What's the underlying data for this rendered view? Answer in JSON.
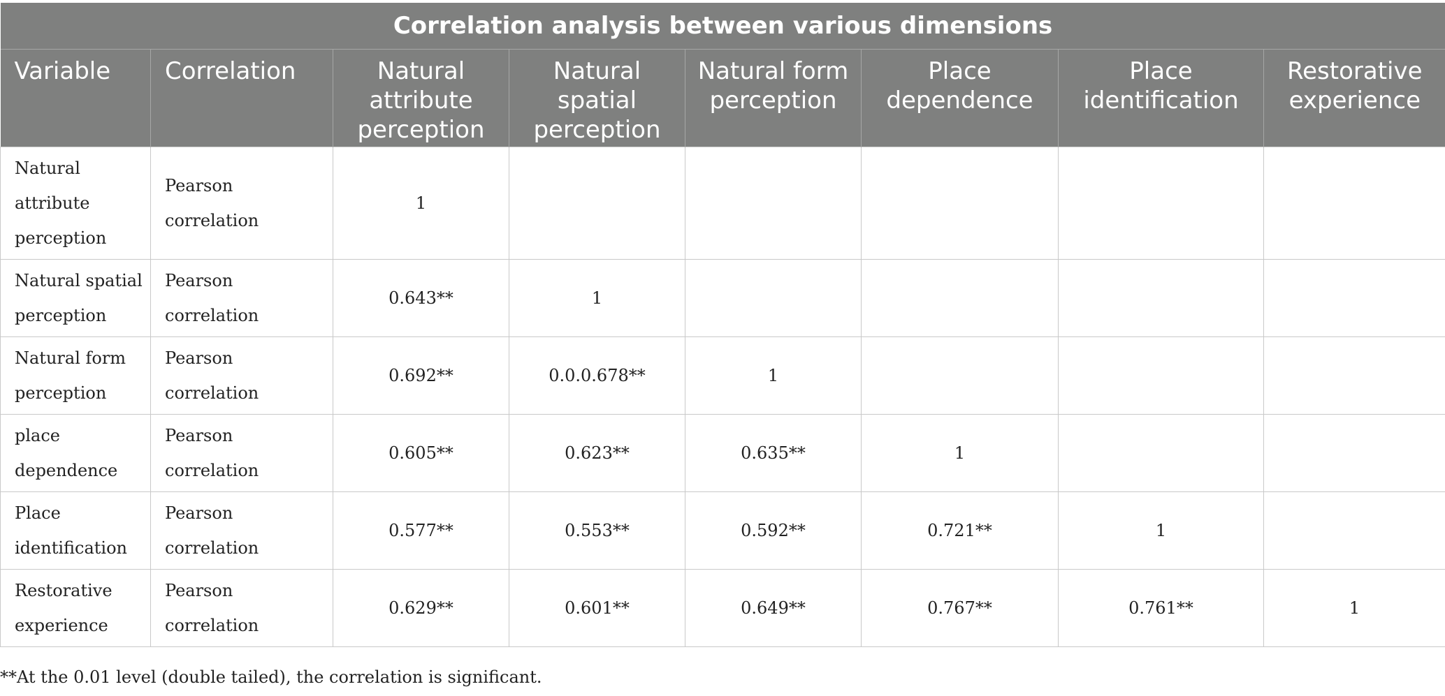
{
  "table": {
    "title": "Correlation analysis between various dimensions",
    "headers": [
      "Variable",
      "Correlation",
      "Natural attribute perception",
      "Natural spatial perception",
      "Natural form perception",
      "Place dependence",
      "Place identification",
      "Restorative experience"
    ],
    "rows": [
      {
        "variable": "Natural attribute perception",
        "correlation": "Pearson correlation",
        "values": [
          "1",
          "",
          "",
          "",
          "",
          ""
        ]
      },
      {
        "variable": "Natural spatial perception",
        "correlation": "Pearson correlation",
        "values": [
          "0.643**",
          "1",
          "",
          "",
          "",
          ""
        ]
      },
      {
        "variable": "Natural form perception",
        "correlation": "Pearson correlation",
        "values": [
          "0.692**",
          "0.0.0.678**",
          "1",
          "",
          "",
          ""
        ]
      },
      {
        "variable": "place dependence",
        "correlation": "Pearson correlation",
        "values": [
          "0.605**",
          "0.623**",
          "0.635**",
          "1",
          "",
          ""
        ]
      },
      {
        "variable": "Place identification",
        "correlation": "Pearson correlation",
        "values": [
          "0.577**",
          "0.553**",
          "0.592**",
          "0.721**",
          "1",
          ""
        ]
      },
      {
        "variable": "Restorative experience",
        "correlation": "Pearson correlation",
        "values": [
          "0.629**",
          "0.601**",
          "0.649**",
          "0.767**",
          "0.761**",
          "1"
        ]
      }
    ],
    "footnote": "**At the 0.01 level (double tailed), the correlation is significant."
  }
}
